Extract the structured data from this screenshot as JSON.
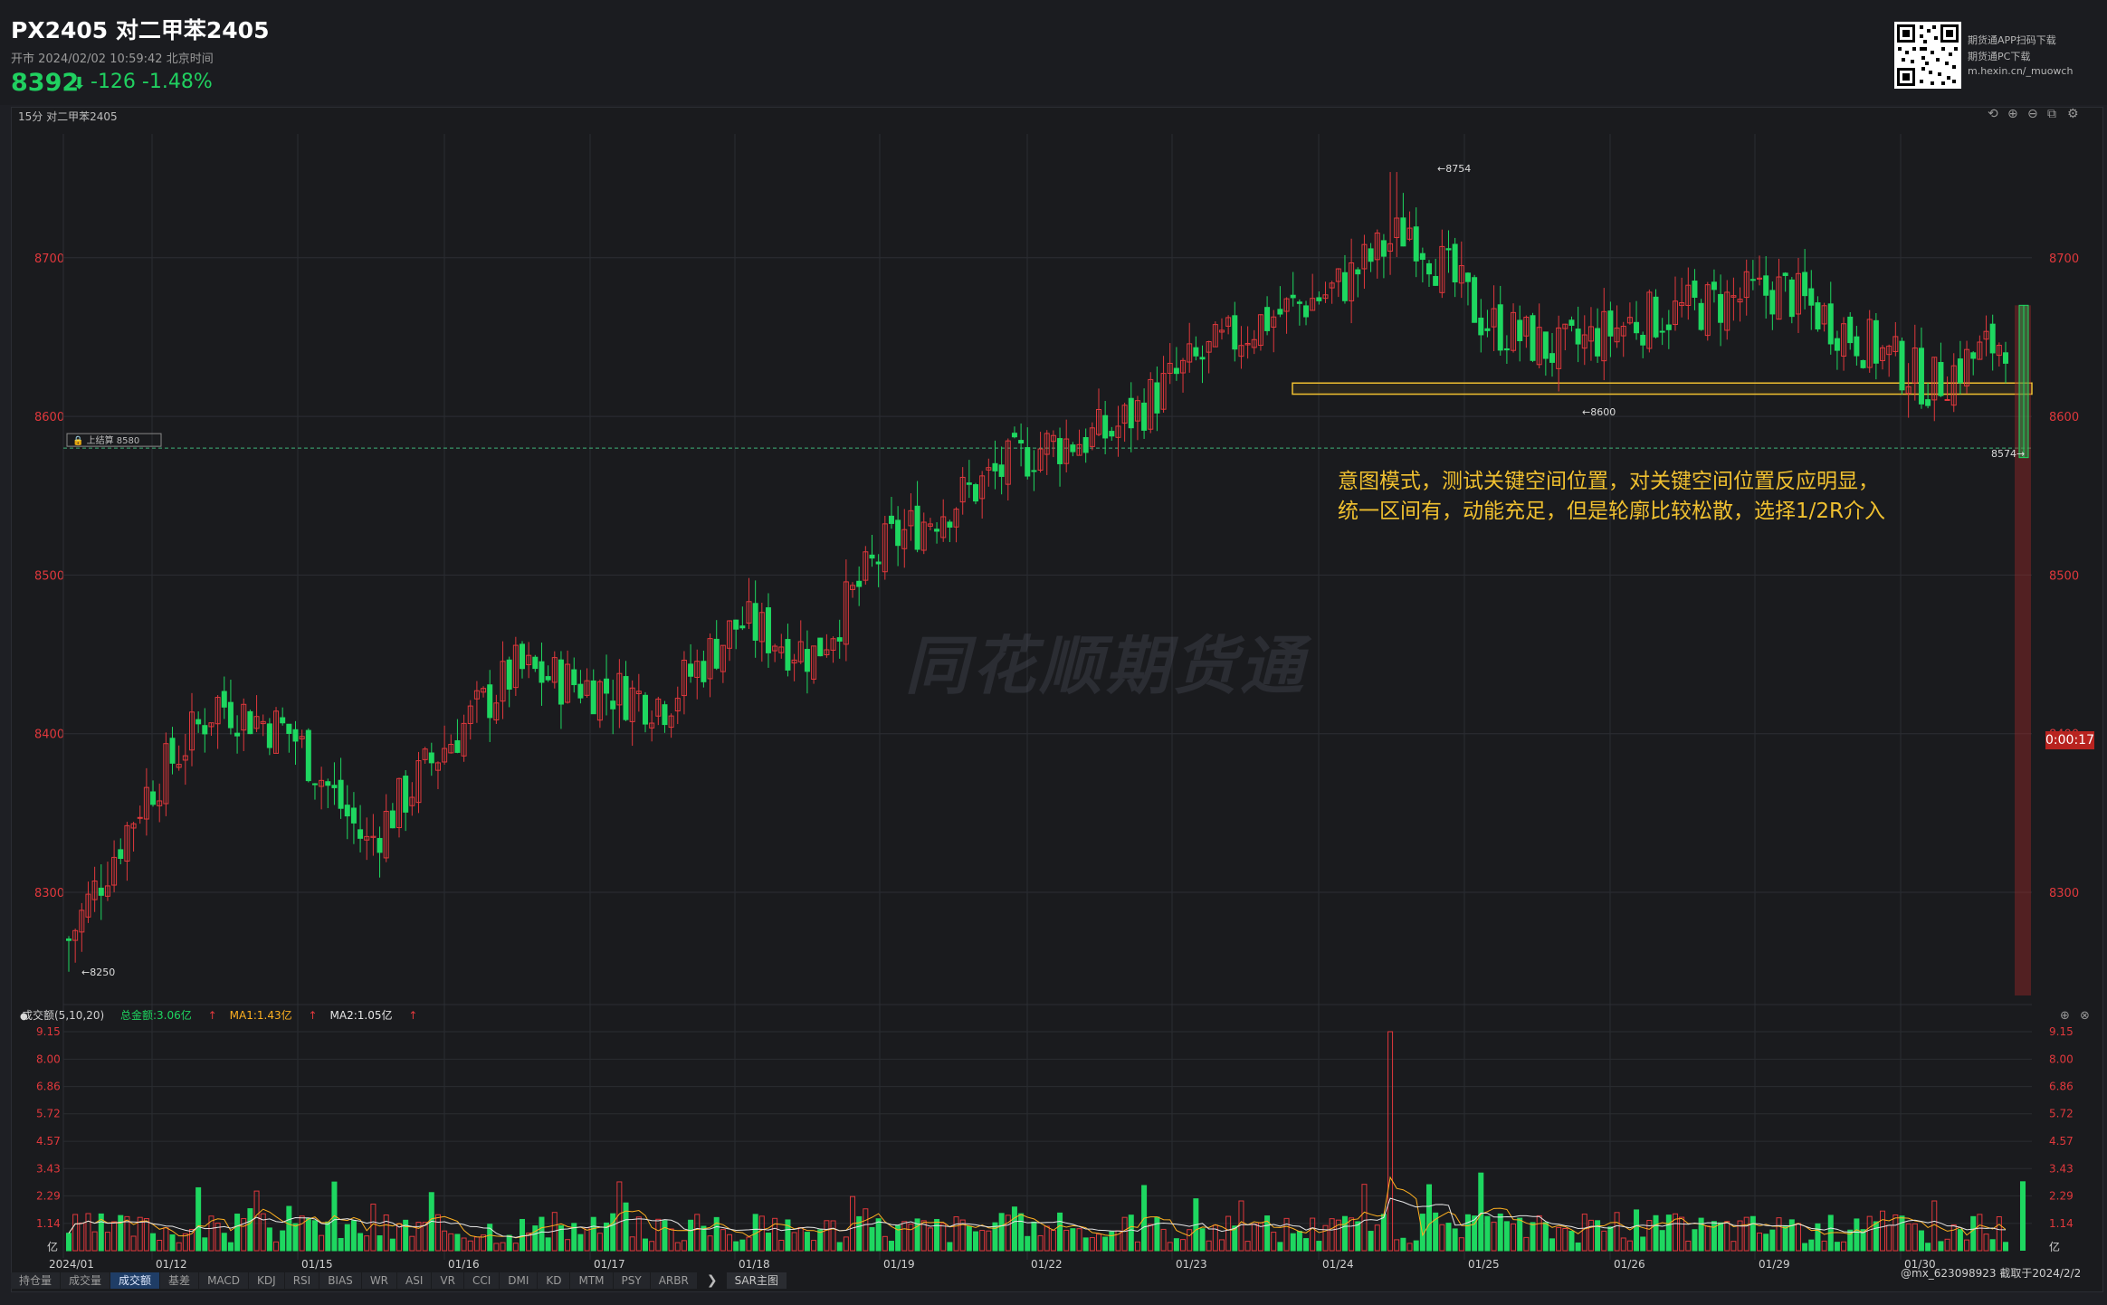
{
  "header": {
    "title": "PX2405 对二甲苯2405",
    "status": "开市  2024/02/02 10:59:42 北京时间",
    "price": "8392",
    "change": "-126  -1.48%",
    "app_lines": [
      "期货通APP扫码下载",
      "期货通PC下载",
      "m.hexin.cn/_muowch"
    ]
  },
  "chart_header": {
    "period_label": "15分 对二甲苯2405"
  },
  "watermark": "同花顺期货通",
  "annotation": {
    "line1": "意图模式，测试关键空间位置，对关键空间位置反应明显，",
    "line2": "统一区间有，动能充足，但是轮廓比较松散，选择1/2R介入"
  },
  "prev_settle": {
    "label": "上结算",
    "value": "8580"
  },
  "countdown": "0:00:17",
  "volume_legend": {
    "title": "成交额(5,10,20)",
    "total": "总金额:3.06亿",
    "ma1": "MA1:1.43亿",
    "ma2": "MA2:1.05亿"
  },
  "tabs": [
    "持仓量",
    "成交量",
    "成交额",
    "基差",
    "MACD",
    "KDJ",
    "RSI",
    "BIAS",
    "WR",
    "ASI",
    "VR",
    "CCI",
    "DMI",
    "KD",
    "MTM",
    "PSY",
    "ARBR"
  ],
  "active_tab": "成交额",
  "sar_tab": "SAR主图",
  "credit": "@mx_623098923  截取于2024/2/2",
  "colors": {
    "up": "#e0383c",
    "down": "#1ed760",
    "accent": "#f0c030",
    "ma1": "#ffb020",
    "ma2": "#e6e6e6"
  },
  "chart_data": {
    "type": "candlestick",
    "period": "15分",
    "y_ticks": [
      8300,
      8400,
      8500,
      8600,
      8700
    ],
    "ylim": [
      8235,
      8778
    ],
    "x_labels": [
      "2024/01",
      "01/12",
      "01/15",
      "01/16",
      "01/17",
      "01/18",
      "01/19",
      "01/22",
      "01/23",
      "01/24",
      "01/25",
      "01/26",
      "01/29",
      "01/30"
    ],
    "annotations": {
      "low": 8250,
      "high": 8754,
      "mid_low": 8600,
      "last_low": 8574,
      "prev_settle": 8580
    },
    "key_zone": [
      8614,
      8621
    ],
    "close_path": [
      {
        "d": "2024/01",
        "v": 8270
      },
      {
        "d": "01/12",
        "v": 8360
      },
      {
        "d": "01/12",
        "v": 8420
      },
      {
        "d": "01/15",
        "v": 8400
      },
      {
        "d": "01/15",
        "v": 8330
      },
      {
        "d": "01/16",
        "v": 8390
      },
      {
        "d": "01/16",
        "v": 8440
      },
      {
        "d": "01/17",
        "v": 8430
      },
      {
        "d": "01/17",
        "v": 8420
      },
      {
        "d": "01/18",
        "v": 8470
      },
      {
        "d": "01/18",
        "v": 8450
      },
      {
        "d": "01/19",
        "v": 8520
      },
      {
        "d": "01/19",
        "v": 8550
      },
      {
        "d": "01/22",
        "v": 8580
      },
      {
        "d": "01/22",
        "v": 8590
      },
      {
        "d": "01/23",
        "v": 8630
      },
      {
        "d": "01/23",
        "v": 8660
      },
      {
        "d": "01/24",
        "v": 8680
      },
      {
        "d": "01/24",
        "v": 8720
      },
      {
        "d": "01/25",
        "v": 8660
      },
      {
        "d": "01/25",
        "v": 8640
      },
      {
        "d": "01/26",
        "v": 8660
      },
      {
        "d": "01/26",
        "v": 8670
      },
      {
        "d": "01/29",
        "v": 8680
      },
      {
        "d": "01/29",
        "v": 8650
      },
      {
        "d": "01/30",
        "v": 8620
      },
      {
        "d": "01/30",
        "v": 8650
      },
      {
        "d": "2024/02/02",
        "v": 8392
      }
    ],
    "volume": {
      "unit": "亿",
      "y_ticks": [
        1.14,
        2.29,
        3.43,
        4.57,
        5.72,
        6.86,
        8.0,
        9.15
      ],
      "ylim": [
        0,
        9.15
      ],
      "peak": 9.15
    }
  }
}
